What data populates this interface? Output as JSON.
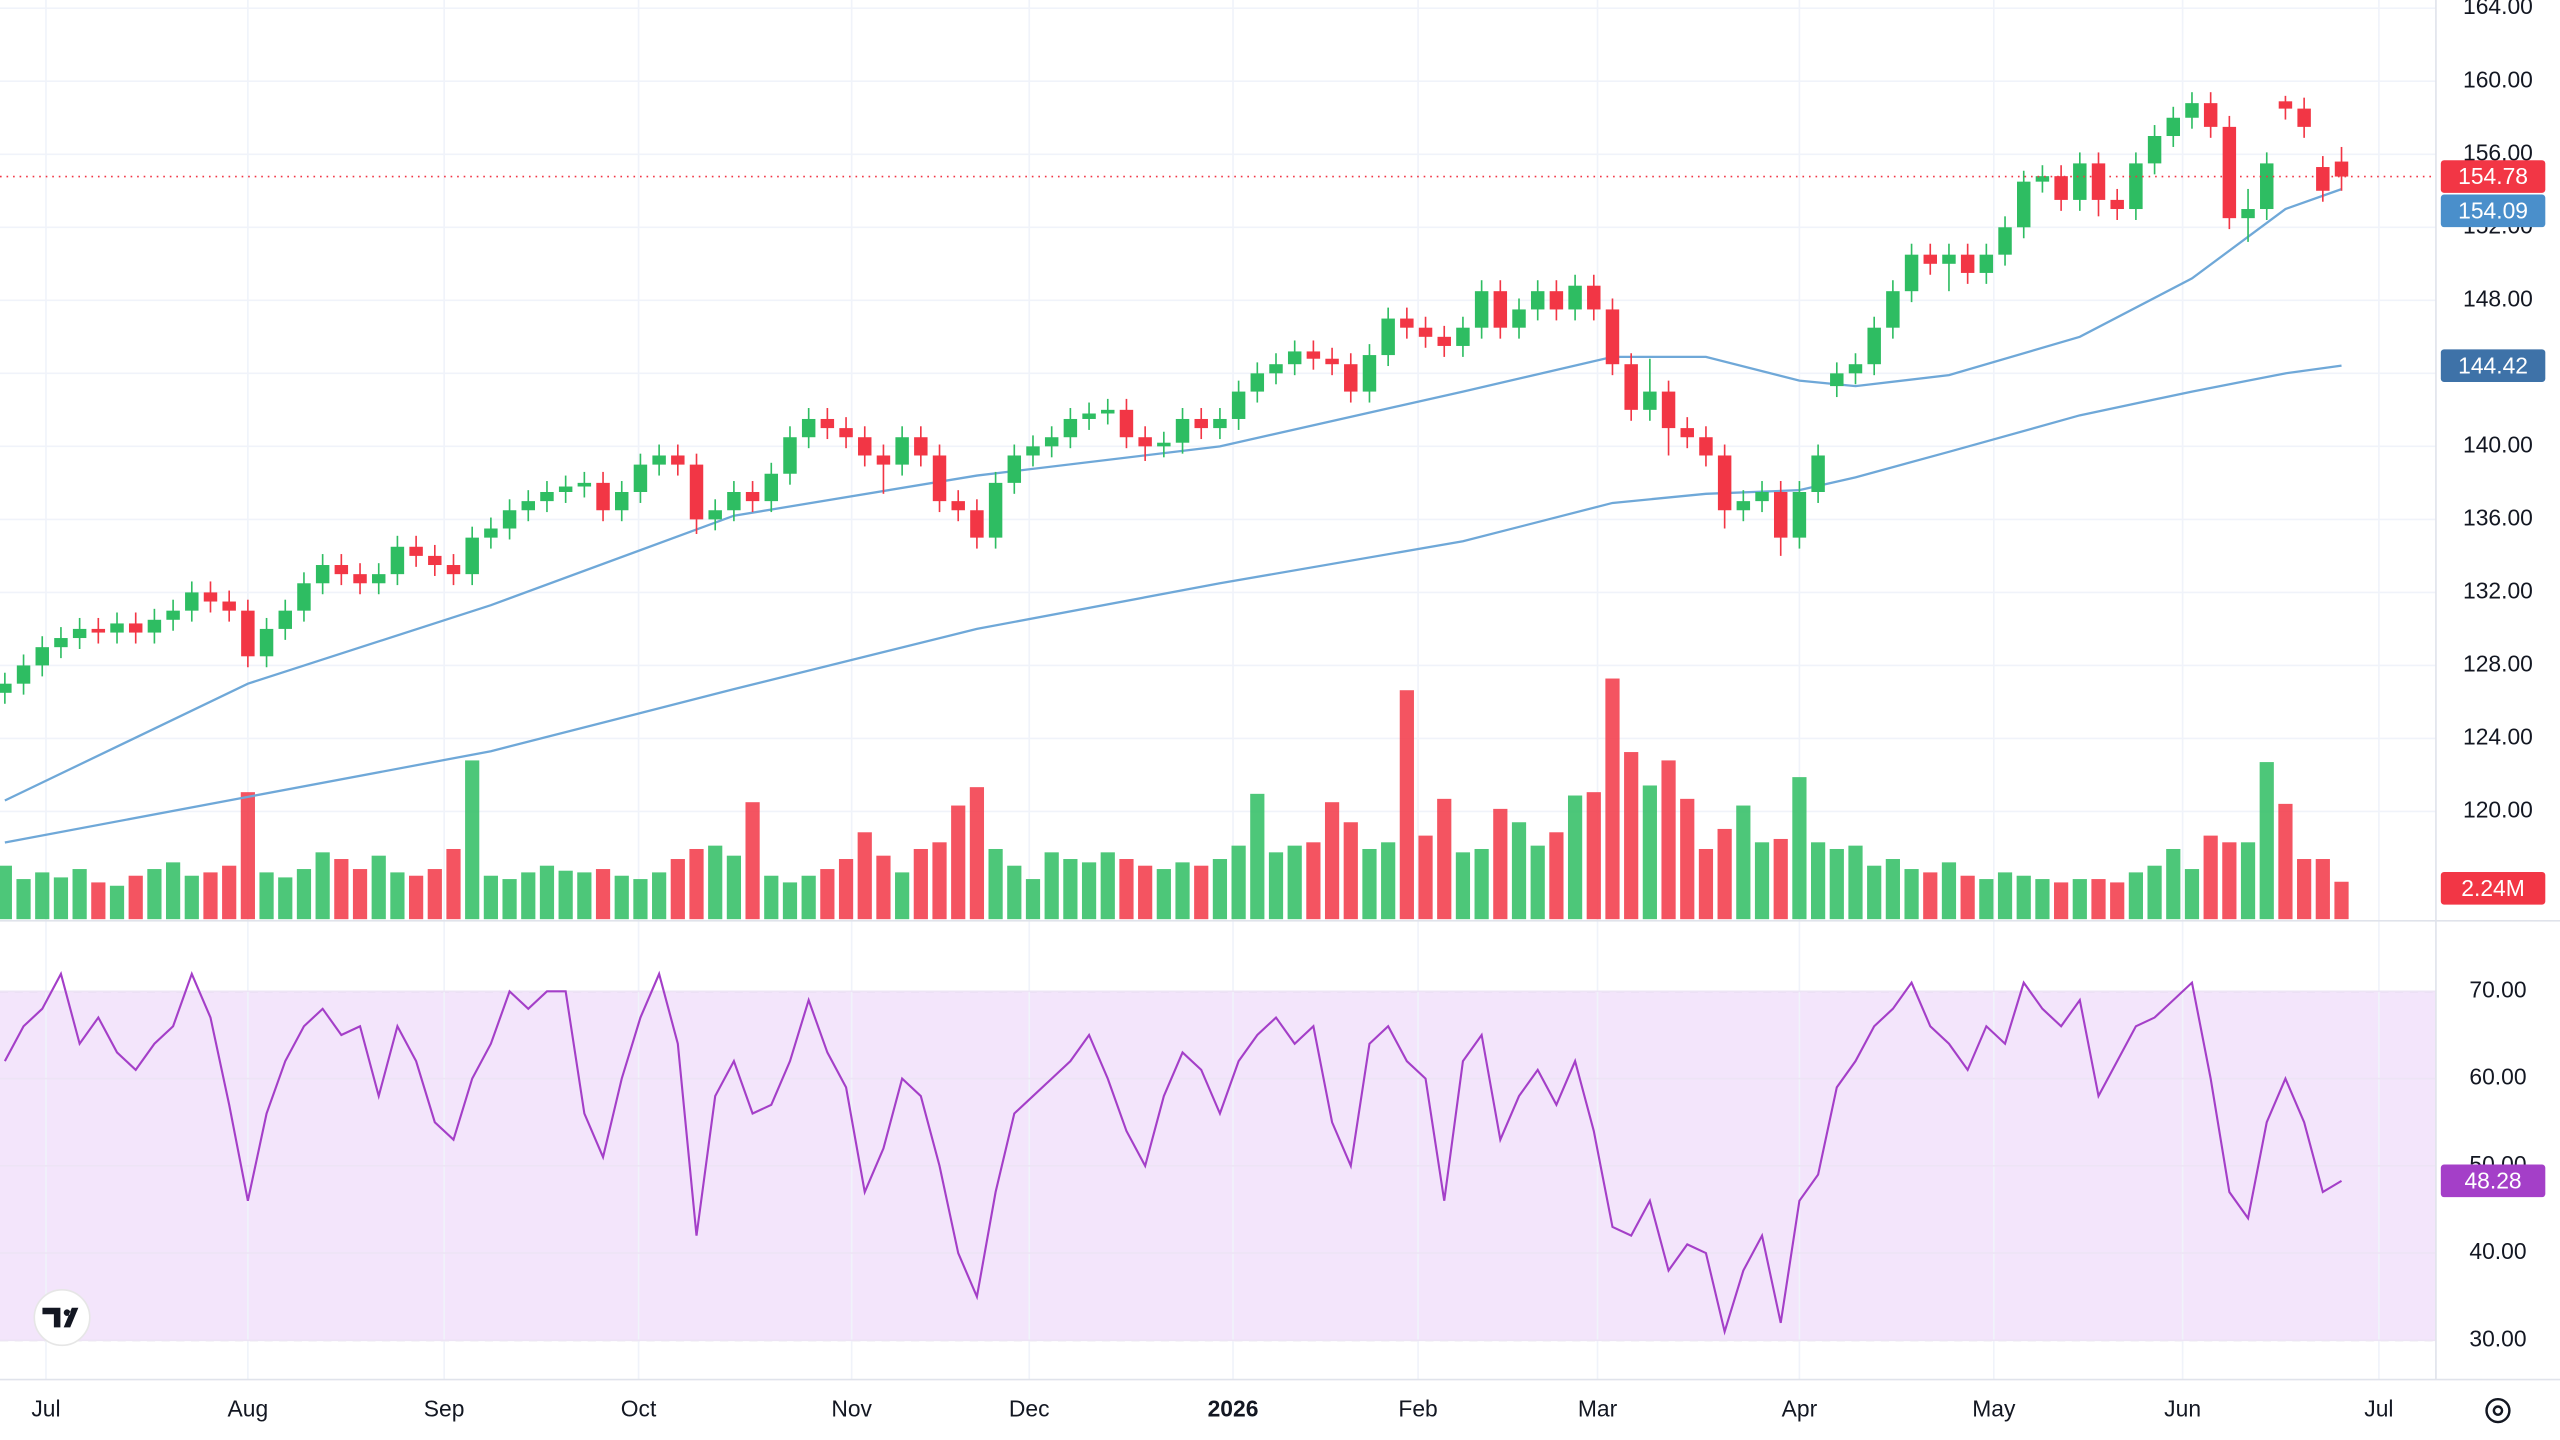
{
  "chart_data": {
    "type": "candlestick",
    "up_color": "#2ebd62",
    "down_color": "#f23645",
    "xlim": [
      -0.26,
      130.05
    ],
    "xticks": [
      {
        "value": 2.2,
        "label": "Jul"
      },
      {
        "value": 13.0,
        "label": "Aug"
      },
      {
        "value": 23.5,
        "label": "Sep"
      },
      {
        "value": 33.9,
        "label": "Oct"
      },
      {
        "value": 45.3,
        "label": "Nov"
      },
      {
        "value": 54.8,
        "label": "Dec"
      },
      {
        "value": 65.7,
        "label": "2026"
      },
      {
        "value": 75.6,
        "label": "Feb"
      },
      {
        "value": 85.2,
        "label": "Mar"
      },
      {
        "value": 96,
        "label": "Apr"
      },
      {
        "value": 106.4,
        "label": "May"
      },
      {
        "value": 116.5,
        "label": "Jun"
      },
      {
        "value": 127,
        "label": "Jul"
      }
    ],
    "ylim": [
      114.1,
      164.45
    ],
    "yticks": [
      {
        "value": 120,
        "label": "120.00"
      },
      {
        "value": 124,
        "label": "124.00"
      },
      {
        "value": 128,
        "label": "128.00"
      },
      {
        "value": 132,
        "label": "132.00"
      },
      {
        "value": 136,
        "label": "136.00"
      },
      {
        "value": 140,
        "label": "140.00"
      },
      {
        "value": 144,
        "label": "144.00"
      },
      {
        "value": 148,
        "label": "148.00"
      },
      {
        "value": 152,
        "label": "152.00"
      },
      {
        "value": 156,
        "label": "156.00"
      },
      {
        "value": 160,
        "label": "160.00"
      },
      {
        "value": 164,
        "label": "164.00"
      }
    ],
    "grid": true,
    "open": [
      126.5,
      127,
      128,
      129,
      129.5,
      130,
      129.8,
      130.3,
      129.8,
      130.5,
      131,
      132,
      131.5,
      131,
      128.5,
      130,
      131,
      132.5,
      133.5,
      133,
      132.5,
      133,
      134.5,
      134,
      133.5,
      133,
      135,
      135.5,
      136.5,
      137,
      137.5,
      137.8,
      138,
      136.5,
      137.5,
      139,
      139.5,
      139,
      136,
      136.5,
      137.5,
      137,
      138.5,
      140.5,
      141.5,
      141,
      140.5,
      139.5,
      139,
      140.5,
      139.5,
      137,
      136.5,
      135,
      138,
      139.5,
      140,
      140.5,
      141.5,
      141.8,
      142,
      140.5,
      140,
      140.2,
      141.5,
      141,
      141.5,
      143,
      144,
      144.5,
      145.2,
      144.8,
      144.5,
      143,
      145,
      147,
      146.5,
      146,
      145.5,
      146.5,
      148.5,
      146.5,
      147.5,
      148.5,
      147.5,
      148.8,
      147.5,
      144.5,
      142,
      143,
      141,
      140.5,
      139.5,
      136.5,
      137,
      137.5,
      135,
      137.5,
      143.3,
      144,
      144.5,
      146.5,
      148.5,
      150.5,
      150,
      150.5,
      149.5,
      150.5,
      152,
      154.5,
      154.8,
      153.5,
      155.5,
      153.5,
      153,
      155.5,
      157,
      158,
      158.8,
      157.5,
      152.5,
      153,
      158.9,
      158.5,
      155.3,
      155.6
    ],
    "high": [
      127.6,
      128.6,
      129.6,
      130.1,
      130.6,
      130.6,
      130.9,
      130.9,
      131.1,
      131.6,
      132.6,
      132.6,
      132.1,
      131.6,
      130.6,
      131.6,
      133.1,
      134.1,
      134.1,
      133.6,
      133.6,
      135.1,
      135.1,
      134.6,
      134.1,
      135.6,
      136.1,
      137.1,
      137.6,
      138.1,
      138.4,
      138.6,
      138.6,
      138.1,
      139.6,
      140.1,
      140.1,
      139.6,
      137.1,
      138.1,
      138.1,
      139.1,
      141.1,
      142.1,
      142.1,
      141.6,
      141.1,
      140.1,
      141.1,
      141.1,
      140.1,
      137.6,
      137.1,
      138.6,
      140.1,
      140.6,
      141.1,
      142.1,
      142.4,
      142.6,
      142.6,
      141.1,
      140.8,
      142.1,
      142.1,
      142.1,
      143.6,
      144.6,
      145.1,
      145.8,
      145.8,
      145.4,
      145.1,
      145.6,
      147.6,
      147.6,
      147.1,
      146.6,
      147.1,
      149.1,
      149.1,
      148.1,
      149.1,
      149.1,
      149.4,
      149.4,
      148.1,
      145.1,
      144.8,
      143.6,
      141.6,
      141.1,
      140.1,
      137.6,
      138.1,
      138.1,
      138.1,
      140.1,
      144.6,
      145.1,
      147.1,
      149.1,
      151.1,
      151.1,
      151.1,
      151.1,
      151.1,
      152.6,
      155.1,
      155.4,
      155.4,
      156.1,
      156.1,
      154.1,
      156.1,
      157.6,
      158.6,
      159.4,
      159.4,
      158.1,
      154.1,
      156.1,
      159.2,
      159.1,
      155.9,
      156.4
    ],
    "low": [
      125.9,
      126.4,
      127.4,
      128.4,
      128.9,
      129.2,
      129.2,
      129.2,
      129.2,
      129.9,
      130.4,
      130.9,
      130.4,
      127.9,
      127.9,
      129.4,
      130.4,
      131.9,
      132.4,
      131.9,
      131.9,
      132.4,
      133.4,
      132.9,
      132.4,
      132.4,
      134.4,
      134.9,
      135.9,
      136.4,
      136.9,
      137.2,
      135.9,
      135.9,
      136.9,
      138.4,
      138.4,
      135.2,
      135.4,
      135.9,
      136.4,
      136.4,
      137.9,
      139.9,
      140.4,
      139.9,
      138.9,
      137.4,
      138.4,
      138.9,
      136.4,
      135.9,
      134.4,
      134.4,
      137.4,
      138.9,
      139.4,
      139.9,
      140.9,
      141.2,
      139.9,
      139.2,
      139.4,
      139.6,
      140.4,
      140.4,
      140.9,
      142.4,
      143.4,
      143.9,
      144.2,
      143.9,
      142.4,
      142.4,
      144.4,
      145.9,
      145.4,
      144.9,
      144.9,
      145.9,
      145.9,
      145.9,
      146.9,
      146.9,
      146.9,
      146.9,
      143.9,
      141.4,
      141.4,
      139.5,
      139.9,
      138.9,
      135.5,
      135.9,
      136.4,
      134,
      134.4,
      136.9,
      142.7,
      143.4,
      143.9,
      145.9,
      147.9,
      149.4,
      148.5,
      148.9,
      148.9,
      149.9,
      151.4,
      153.9,
      152.9,
      152.9,
      152.6,
      152.4,
      152.4,
      154.9,
      156.4,
      157.4,
      156.9,
      151.9,
      151.2,
      152.4,
      157.9,
      156.9,
      153.4,
      154
    ],
    "close": [
      127,
      128,
      129,
      129.5,
      130,
      129.8,
      130.3,
      129.8,
      130.5,
      131,
      132,
      131.5,
      131,
      128.5,
      130,
      131,
      132.5,
      133.5,
      133,
      132.5,
      133,
      134.5,
      134,
      133.5,
      133,
      135,
      135.5,
      136.5,
      137,
      137.5,
      137.8,
      138,
      136.5,
      137.5,
      139,
      139.5,
      139,
      136,
      136.5,
      137.5,
      137,
      138.5,
      140.5,
      141.5,
      141,
      140.5,
      139.5,
      139,
      140.5,
      139.5,
      137,
      136.5,
      135,
      138,
      139.5,
      140,
      140.5,
      141.5,
      141.8,
      142,
      140.5,
      140,
      140.2,
      141.5,
      141,
      141.5,
      143,
      144,
      144.5,
      145.2,
      144.8,
      144.5,
      143,
      145,
      147,
      146.5,
      146,
      145.5,
      146.5,
      148.5,
      146.5,
      147.5,
      148.5,
      147.5,
      148.8,
      147.5,
      144.5,
      142,
      143,
      141,
      140.5,
      139.5,
      136.5,
      137,
      137.5,
      135,
      137.5,
      139.5,
      144,
      144.5,
      146.5,
      148.5,
      150.5,
      150,
      150.5,
      149.5,
      150.5,
      152,
      154.5,
      154.8,
      153.5,
      155.5,
      153.5,
      153,
      155.5,
      157,
      158,
      158.8,
      157.5,
      152.5,
      153,
      155.5,
      158.5,
      157.5,
      154,
      154.78
    ],
    "last_line_color": "#f23645",
    "overlays": [
      {
        "color": "#6fa8d8",
        "label_color": "#4a8fcb",
        "x": [
          0,
          13,
          26,
          39,
          52,
          65,
          78,
          86,
          91,
          96,
          99,
          104,
          111,
          117,
          122,
          125
        ],
        "values": [
          120.6,
          127,
          131.3,
          136.2,
          138.4,
          140,
          143,
          144.9,
          144.9,
          143.6,
          143.3,
          143.9,
          146,
          149.2,
          153,
          154.09
        ]
      },
      {
        "color": "#6fa8d8",
        "label_color": "#3e72a8",
        "x": [
          0,
          13,
          26,
          39,
          52,
          65,
          78,
          86,
          91,
          96,
          99,
          104,
          111,
          117,
          122,
          125
        ],
        "values": [
          118.3,
          120.8,
          123.3,
          126.7,
          130,
          132.5,
          134.8,
          136.9,
          137.4,
          137.6,
          138.3,
          139.7,
          141.7,
          143,
          144,
          144.42
        ]
      }
    ],
    "volume": {
      "ylim": [
        0,
        55
      ],
      "last_label": "2.24M",
      "values": [
        3.2,
        2.4,
        2.8,
        2.5,
        3.0,
        2.2,
        2.0,
        2.6,
        3.0,
        3.4,
        2.6,
        2.8,
        3.2,
        7.6,
        2.8,
        2.5,
        3.0,
        4.0,
        3.6,
        3.0,
        3.8,
        2.8,
        2.6,
        3.0,
        4.2,
        9.5,
        2.6,
        2.4,
        2.8,
        3.2,
        2.9,
        2.8,
        3.0,
        2.6,
        2.4,
        2.8,
        3.6,
        4.2,
        4.4,
        3.8,
        7.0,
        2.6,
        2.2,
        2.6,
        3.0,
        3.6,
        5.2,
        3.8,
        2.8,
        4.2,
        4.6,
        6.8,
        7.9,
        4.2,
        3.2,
        2.4,
        4.0,
        3.6,
        3.4,
        4.0,
        3.6,
        3.2,
        3.0,
        3.4,
        3.2,
        3.6,
        4.4,
        7.5,
        4.0,
        4.4,
        4.6,
        7.0,
        5.8,
        4.2,
        4.6,
        13.7,
        5.0,
        7.2,
        4.0,
        4.2,
        6.6,
        5.8,
        4.4,
        5.2,
        7.4,
        7.6,
        14.4,
        10.0,
        8.0,
        9.5,
        7.2,
        4.2,
        5.4,
        6.8,
        4.6,
        4.8,
        8.5,
        4.6,
        4.2,
        4.4,
        3.2,
        3.6,
        3.0,
        2.8,
        3.4,
        2.6,
        2.4,
        2.8,
        2.6,
        2.4,
        2.2,
        2.4,
        2.4,
        2.2,
        2.8,
        3.2,
        4.2,
        3.0,
        5.0,
        4.6,
        4.6,
        9.4,
        6.9,
        3.6,
        3.6,
        2.24
      ]
    },
    "rsi": {
      "color": "#a43fc8",
      "band": [
        30,
        70
      ],
      "band_color": "#f3e5fb",
      "ylim": [
        25.5,
        77.9
      ],
      "yticks": [
        {
          "value": 30,
          "label": "30.00"
        },
        {
          "value": 40,
          "label": "40.00"
        },
        {
          "value": 50,
          "label": "50.00"
        },
        {
          "value": 60,
          "label": "60.00"
        },
        {
          "value": 70,
          "label": "70.00"
        }
      ],
      "values": [
        62,
        66,
        68,
        72,
        64,
        67,
        63,
        61,
        64,
        66,
        72,
        67,
        57,
        46,
        56,
        62,
        66,
        68,
        65,
        66,
        58,
        66,
        62,
        55,
        53,
        60,
        64,
        70,
        68,
        70,
        70,
        56,
        51,
        60,
        67,
        72,
        64,
        42,
        58,
        62,
        56,
        57,
        62,
        69,
        63,
        59,
        47,
        52,
        60,
        58,
        50,
        40,
        35,
        47,
        56,
        58,
        60,
        62,
        65,
        60,
        54,
        50,
        58,
        63,
        61,
        56,
        62,
        65,
        67,
        64,
        66,
        55,
        50,
        64,
        66,
        62,
        60,
        46,
        62,
        65,
        53,
        58,
        61,
        57,
        62,
        54,
        43,
        42,
        46,
        38,
        41,
        40,
        31,
        38,
        42,
        32,
        46,
        49,
        59,
        62,
        66,
        68,
        71,
        66,
        64,
        61,
        66,
        64,
        71,
        68,
        66,
        69,
        58,
        62,
        66,
        67,
        69,
        71,
        60,
        47,
        44,
        55,
        60,
        55,
        47,
        48.28
      ]
    }
  }
}
